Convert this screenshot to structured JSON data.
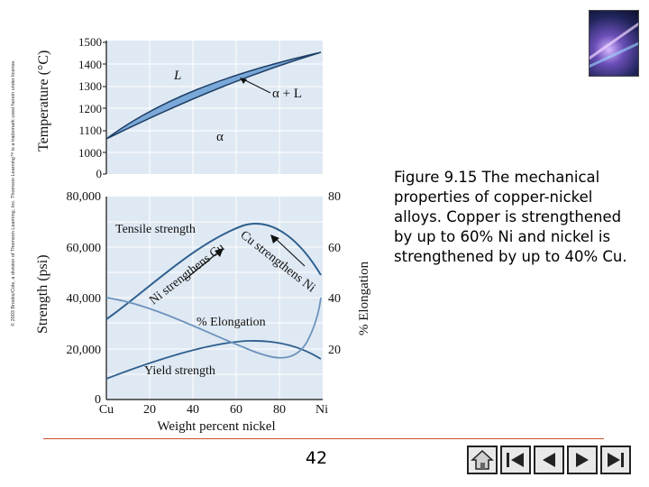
{
  "copyright": "© 2003 Brooks/Cole, a division of Thomson Learning, Inc. Thomson Learning™ is a trademark used herein under license.",
  "caption": "Figure 9.15 The mechanical properties of copper-nickel alloys. Copper is strengthened by up to 60% Ni and nickel is strengthened by up to 40% Cu.",
  "page_number": "42",
  "top_chart": {
    "ylabel": "Temperature (°C)",
    "y_ticks": [
      "1500",
      "1400",
      "1300",
      "1200",
      "1100",
      "1000",
      "0"
    ],
    "region_labels": {
      "liquid": "L",
      "two_phase": "α + L",
      "solid": "α"
    }
  },
  "bottom_chart": {
    "ylabel_left": "Strength (psi)",
    "ylabel_right": "% Elongation",
    "xlabel": "Weight percent nickel",
    "x_ticks": [
      "Cu",
      "20",
      "40",
      "60",
      "80",
      "Ni"
    ],
    "y_ticks_left": [
      "80,000",
      "60,000",
      "40,000",
      "20,000",
      "0"
    ],
    "y_ticks_right": [
      "80",
      "60",
      "40",
      "20"
    ],
    "annotations": {
      "tensile": "Tensile strength",
      "ni_strengthens_cu": "Ni strengthens Cu",
      "cu_strengthens_ni": "Cu strengthens Ni",
      "elongation": "% Elongation",
      "yield": "Yield strength"
    }
  },
  "nav_buttons": [
    "home-icon",
    "first-icon",
    "prev-icon",
    "next-icon",
    "last-icon"
  ],
  "colors": {
    "plot_bg": "#dfe9f3",
    "curve": "#2e5f8e",
    "two_phase_fill": "#7aa8d8",
    "rule": "#c8502c"
  }
}
